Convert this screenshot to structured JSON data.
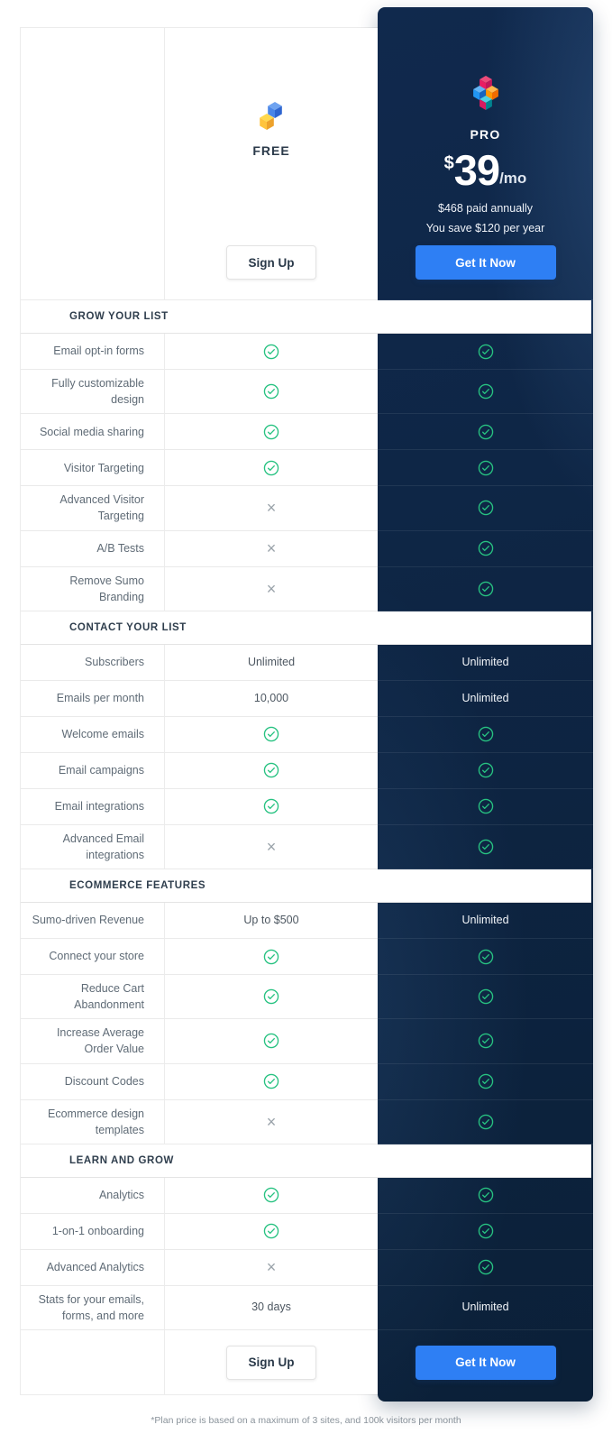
{
  "plans": {
    "free": {
      "name": "FREE",
      "cta": "Sign Up"
    },
    "pro": {
      "name": "PRO",
      "price_currency": "$",
      "price": "39",
      "price_period": "/mo",
      "billing_note": "$468 paid annually",
      "savings_note": "You save $120 per year",
      "cta": "Get It Now"
    }
  },
  "sections": [
    {
      "title": "GROW YOUR LIST",
      "rows": [
        {
          "label": "Email opt-in forms",
          "free": "check",
          "pro": "check"
        },
        {
          "label": "Fully customizable design",
          "free": "check",
          "pro": "check"
        },
        {
          "label": "Social media sharing",
          "free": "check",
          "pro": "check"
        },
        {
          "label": "Visitor Targeting",
          "free": "check",
          "pro": "check"
        },
        {
          "label": "Advanced Visitor Targeting",
          "free": "cross",
          "pro": "check"
        },
        {
          "label": "A/B Tests",
          "free": "cross",
          "pro": "check"
        },
        {
          "label": "Remove Sumo Branding",
          "free": "cross",
          "pro": "check"
        }
      ]
    },
    {
      "title": "CONTACT YOUR LIST",
      "rows": [
        {
          "label": "Subscribers",
          "free": "Unlimited",
          "pro": "Unlimited"
        },
        {
          "label": "Emails per month",
          "free": "10,000",
          "pro": "Unlimited"
        },
        {
          "label": "Welcome emails",
          "free": "check",
          "pro": "check"
        },
        {
          "label": "Email campaigns",
          "free": "check",
          "pro": "check"
        },
        {
          "label": "Email integrations",
          "free": "check",
          "pro": "check"
        },
        {
          "label": "Advanced Email integrations",
          "free": "cross",
          "pro": "check"
        }
      ]
    },
    {
      "title": "ECOMMERCE FEATURES",
      "rows": [
        {
          "label": "Sumo-driven Revenue",
          "free": "Up to $500",
          "pro": "Unlimited"
        },
        {
          "label": "Connect your store",
          "free": "check",
          "pro": "check"
        },
        {
          "label": "Reduce Cart Abandonment",
          "free": "check",
          "pro": "check"
        },
        {
          "label": "Increase Average Order Value",
          "free": "check",
          "pro": "check"
        },
        {
          "label": "Discount Codes",
          "free": "check",
          "pro": "check"
        },
        {
          "label": "Ecommerce design templates",
          "free": "cross",
          "pro": "check"
        }
      ]
    },
    {
      "title": "LEARN AND GROW",
      "rows": [
        {
          "label": "Analytics",
          "free": "check",
          "pro": "check"
        },
        {
          "label": "1-on-1 onboarding",
          "free": "check",
          "pro": "check"
        },
        {
          "label": "Advanced Analytics",
          "free": "cross",
          "pro": "check"
        },
        {
          "label": "Stats for your emails, forms, and more",
          "free": "30 days",
          "pro": "Unlimited"
        }
      ]
    }
  ],
  "footer": {
    "free_cta": "Sign Up",
    "pro_cta": "Get It Now",
    "note": "*Plan price is based on a maximum of 3 sites, and 100k visitors per month"
  },
  "colors": {
    "check_green": "#27c281",
    "cross_gray": "#99a2a9",
    "cta_blue": "#2e7ff4",
    "pro_background": "#0c2340"
  }
}
